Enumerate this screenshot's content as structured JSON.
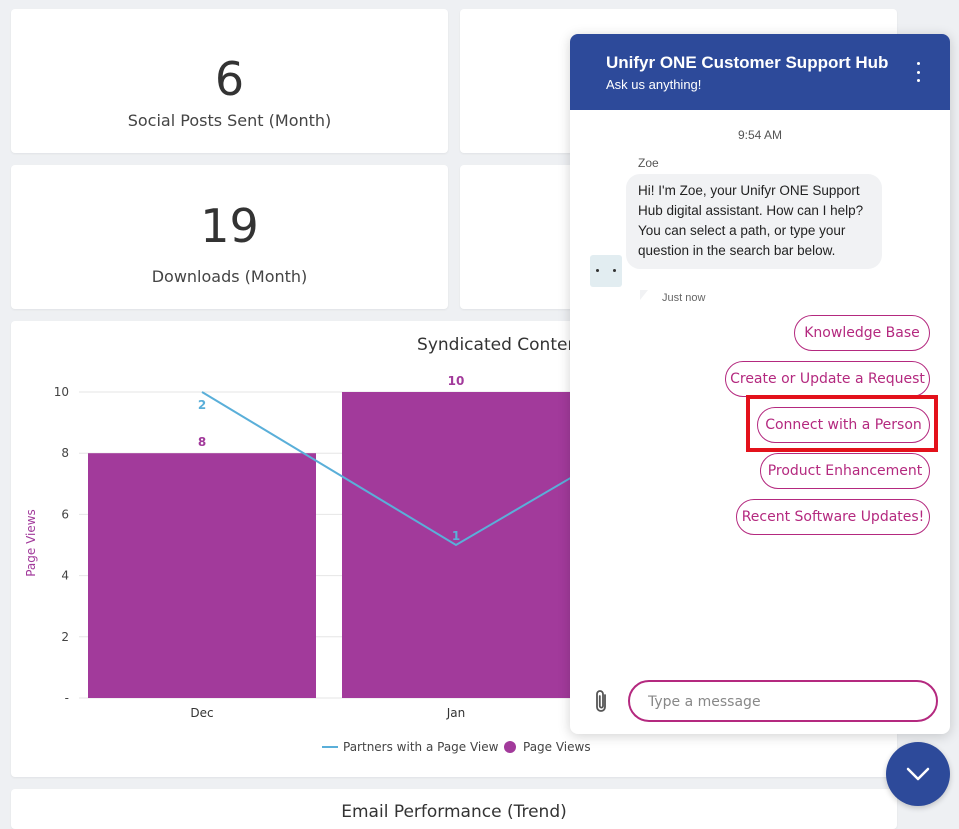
{
  "kpis": [
    {
      "value": "6",
      "label": "Social Posts Sent (Month)"
    },
    {
      "value": "19",
      "label": "Downloads (Month)"
    }
  ],
  "syndicated_chart": {
    "title": "Syndicated Content Performance (Tr",
    "ylabel": "Page Views",
    "yticks": [
      "10",
      "8",
      "6",
      "4",
      "2",
      "-"
    ],
    "legend": {
      "line": "Partners with a Page View",
      "bar": "Page Views"
    }
  },
  "email_chart": {
    "title": "Email Performance (Trend)"
  },
  "chart_data": {
    "type": "bar",
    "title": "Syndicated Content Performance (Tr",
    "xlabel": "",
    "ylabel": "Page Views",
    "ylim": [
      0,
      10
    ],
    "categories": [
      "Dec",
      "Jan"
    ],
    "grid": true,
    "legend_position": "bottom",
    "series": [
      {
        "name": "Page Views",
        "kind": "bar",
        "color": "#a23a9b",
        "values": [
          8,
          10
        ],
        "labels": [
          "8",
          "10"
        ]
      },
      {
        "name": "Partners with a Page View",
        "kind": "line",
        "color": "#5aafd9",
        "values": [
          2,
          1
        ],
        "labels": [
          "2",
          "1"
        ]
      }
    ]
  },
  "chat": {
    "title": "Unifyr ONE Customer Support Hub",
    "subtitle": "Ask us anything!",
    "time": "9:54 AM",
    "sender": "Zoe",
    "message": "Hi! I'm Zoe, your Unifyr ONE Support Hub digital assistant.  How can I help? You can select a path, or type your question in the search bar below.",
    "message_time": "Just now",
    "options": [
      "Knowledge Base",
      "Create or Update a Request",
      "Connect with a Person",
      "Product Enhancement",
      "Recent Software Updates!"
    ],
    "input_placeholder": "Type a message"
  },
  "colors": {
    "header": "#2d4a9a",
    "accent": "#b4297f",
    "bar": "#a23a9b",
    "line": "#5aafd9",
    "highlight": "#e3111b"
  }
}
